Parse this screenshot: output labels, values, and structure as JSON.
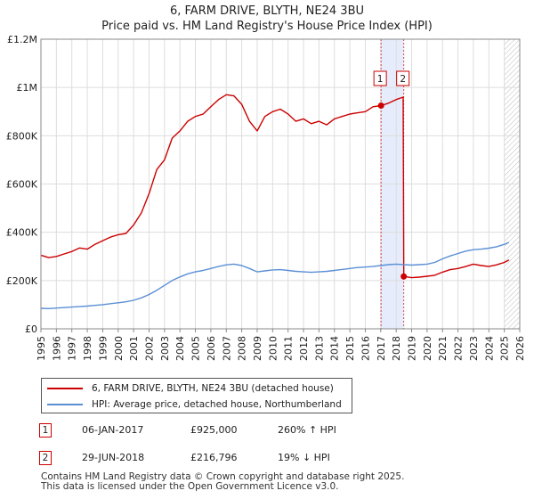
{
  "title": {
    "line1": "6, FARM DRIVE, BLYTH, NE24 3BU",
    "line2": "Price paid vs. HM Land Registry's House Price Index (HPI)"
  },
  "colors": {
    "property": "#cc0000",
    "hpi": "#5b8fd4",
    "grid": "#dddddd",
    "highlight": "#e6ecfb",
    "hatch": "#bbbbbb"
  },
  "legend": {
    "property_label": "6, FARM DRIVE, BLYTH, NE24 3BU (detached house)",
    "hpi_label": "HPI: Average price, detached house, Northumberland"
  },
  "annotations": [
    {
      "num": "1",
      "date": "06-JAN-2017",
      "price": "£925,000",
      "hpi": "260% ↑ HPI"
    },
    {
      "num": "2",
      "date": "29-JUN-2018",
      "price": "£216,796",
      "hpi": "19% ↓ HPI"
    }
  ],
  "footer": {
    "line1": "Contains HM Land Registry data © Crown copyright and database right 2025.",
    "line2": "This data is licensed under the Open Government Licence v3.0."
  },
  "chart_data": {
    "type": "line",
    "title": "Price paid vs. HM Land Registry's House Price Index (HPI)",
    "xlim": [
      1995,
      2026
    ],
    "ylim": [
      0,
      1200000
    ],
    "x_ticks": [
      "1995",
      "1996",
      "1997",
      "1998",
      "1999",
      "2000",
      "2001",
      "2002",
      "2003",
      "2004",
      "2005",
      "2006",
      "2007",
      "2008",
      "2009",
      "2010",
      "2011",
      "2012",
      "2013",
      "2014",
      "2015",
      "2016",
      "2017",
      "2018",
      "2019",
      "2020",
      "2021",
      "2022",
      "2023",
      "2024",
      "2025",
      "2026"
    ],
    "y_ticks": [
      {
        "value": 0,
        "label": "£0"
      },
      {
        "value": 200000,
        "label": "£200K"
      },
      {
        "value": 400000,
        "label": "£400K"
      },
      {
        "value": 600000,
        "label": "£600K"
      },
      {
        "value": 800000,
        "label": "£800K"
      },
      {
        "value": 1000000,
        "label": "£1M"
      },
      {
        "value": 1200000,
        "label": "£1.2M"
      }
    ],
    "highlight_range": [
      2017.02,
      2018.49
    ],
    "hatch_from": 2025.0,
    "sales": [
      {
        "label": "1",
        "x": 2017.02,
        "y": 925000
      },
      {
        "label": "2",
        "x": 2018.49,
        "y": 216796
      }
    ],
    "series": [
      {
        "name": "6, FARM DRIVE, BLYTH, NE24 3BU (detached house)",
        "x": [
          1995.0,
          1995.5,
          1996.0,
          1996.5,
          1997.0,
          1997.5,
          1998.0,
          1998.5,
          1999.0,
          1999.5,
          2000.0,
          2000.5,
          2001.0,
          2001.5,
          2002.0,
          2002.5,
          2003.0,
          2003.5,
          2004.0,
          2004.5,
          2005.0,
          2005.5,
          2006.0,
          2006.5,
          2007.0,
          2007.5,
          2008.0,
          2008.5,
          2009.0,
          2009.5,
          2010.0,
          2010.5,
          2011.0,
          2011.5,
          2012.0,
          2012.5,
          2013.0,
          2013.5,
          2014.0,
          2014.5,
          2015.0,
          2015.5,
          2016.0,
          2016.5,
          2017.02,
          2017.5,
          2018.0,
          2018.45,
          2018.49,
          2018.7,
          2019.0,
          2019.5,
          2020.0,
          2020.5,
          2021.0,
          2021.5,
          2022.0,
          2022.5,
          2023.0,
          2023.5,
          2024.0,
          2024.5,
          2025.0,
          2025.3
        ],
        "values": [
          305000,
          295000,
          300000,
          310000,
          320000,
          335000,
          330000,
          350000,
          365000,
          380000,
          390000,
          395000,
          430000,
          480000,
          560000,
          660000,
          700000,
          790000,
          820000,
          860000,
          880000,
          890000,
          920000,
          950000,
          970000,
          965000,
          930000,
          860000,
          820000,
          880000,
          900000,
          910000,
          890000,
          860000,
          870000,
          850000,
          860000,
          845000,
          870000,
          880000,
          890000,
          895000,
          900000,
          920000,
          925000,
          935000,
          950000,
          960000,
          216796,
          215000,
          212000,
          214000,
          218000,
          222000,
          235000,
          245000,
          250000,
          258000,
          268000,
          262000,
          258000,
          265000,
          275000,
          285000
        ]
      },
      {
        "name": "HPI: Average price, detached house, Northumberland",
        "x": [
          1995.0,
          1995.5,
          1996.0,
          1996.5,
          1997.0,
          1997.5,
          1998.0,
          1998.5,
          1999.0,
          1999.5,
          2000.0,
          2000.5,
          2001.0,
          2001.5,
          2002.0,
          2002.5,
          2003.0,
          2003.5,
          2004.0,
          2004.5,
          2005.0,
          2005.5,
          2006.0,
          2006.5,
          2007.0,
          2007.5,
          2008.0,
          2008.5,
          2009.0,
          2009.5,
          2010.0,
          2010.5,
          2011.0,
          2011.5,
          2012.0,
          2012.5,
          2013.0,
          2013.5,
          2014.0,
          2014.5,
          2015.0,
          2015.5,
          2016.0,
          2016.5,
          2017.0,
          2017.5,
          2018.0,
          2018.5,
          2019.0,
          2019.5,
          2020.0,
          2020.5,
          2021.0,
          2021.5,
          2022.0,
          2022.5,
          2023.0,
          2023.5,
          2024.0,
          2024.5,
          2025.0,
          2025.3
        ],
        "values": [
          85000,
          84000,
          86000,
          88000,
          90000,
          92000,
          94000,
          97000,
          100000,
          104000,
          108000,
          112000,
          118000,
          128000,
          142000,
          160000,
          180000,
          200000,
          215000,
          228000,
          236000,
          242000,
          250000,
          258000,
          265000,
          268000,
          262000,
          250000,
          236000,
          240000,
          244000,
          245000,
          242000,
          238000,
          236000,
          234000,
          236000,
          238000,
          242000,
          246000,
          250000,
          254000,
          256000,
          258000,
          262000,
          266000,
          268000,
          266000,
          264000,
          266000,
          268000,
          275000,
          290000,
          302000,
          312000,
          322000,
          328000,
          330000,
          334000,
          340000,
          350000,
          358000
        ]
      }
    ]
  }
}
